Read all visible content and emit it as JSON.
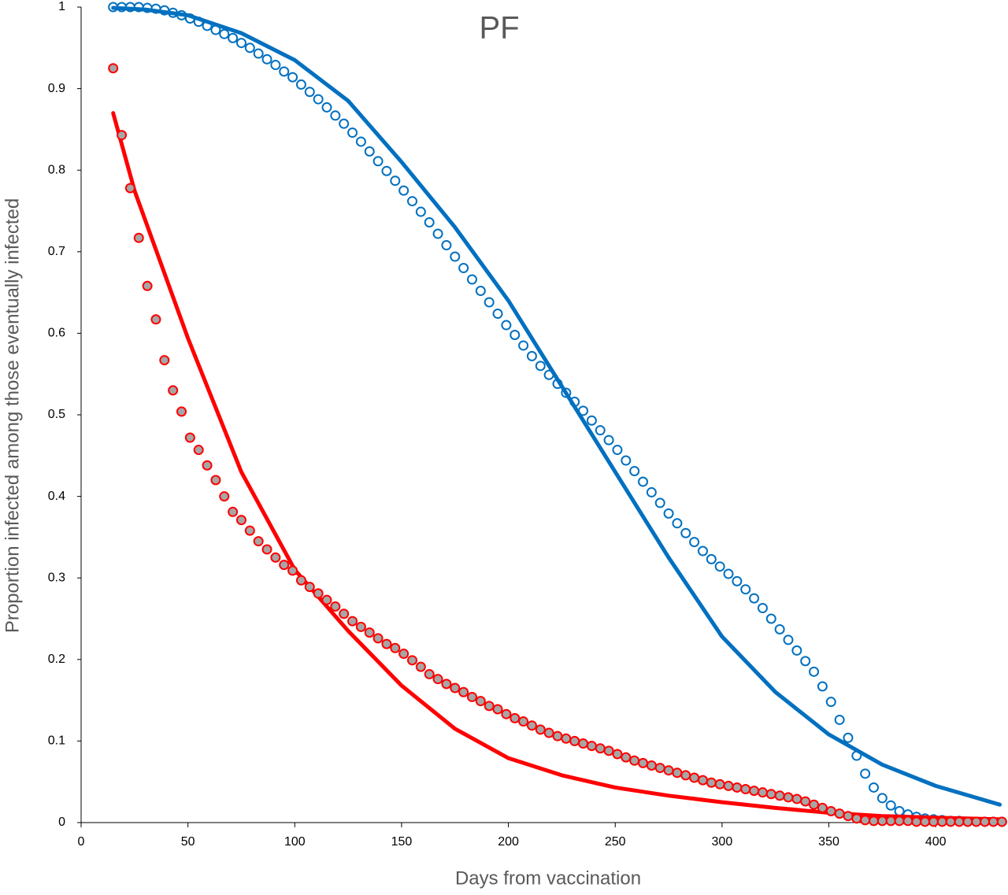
{
  "chart_data": {
    "type": "scatter",
    "title": "PF",
    "x_label": "Days from vaccination",
    "y_label": "Proportion infected among those eventually infected",
    "xlim": [
      0,
      432
    ],
    "xticks": [
      0,
      50,
      100,
      150,
      200,
      250,
      300,
      350,
      400
    ],
    "ylim": [
      0,
      1
    ],
    "yticks": [
      0,
      0.1,
      0.2,
      0.3,
      0.4,
      0.5,
      0.6,
      0.7,
      0.8,
      0.9,
      1
    ],
    "series": [
      {
        "style": "markers",
        "color": "#0070c0",
        "fill": "#ffffff",
        "x": [
          15,
          19,
          23,
          27,
          31,
          35,
          39,
          43,
          47,
          51,
          55,
          59,
          63,
          67,
          71,
          75,
          79,
          83,
          87,
          91,
          95,
          99,
          103,
          107,
          111,
          115,
          119,
          123,
          127,
          131,
          135,
          139,
          143,
          147,
          151,
          155,
          159,
          163,
          167,
          171,
          175,
          179,
          183,
          187,
          191,
          195,
          199,
          203,
          207,
          211,
          215,
          219,
          223,
          227,
          231,
          235,
          239,
          243,
          247,
          251,
          255,
          259,
          263,
          267,
          271,
          275,
          279,
          283,
          287,
          291,
          295,
          299,
          303,
          307,
          311,
          315,
          319,
          323,
          327,
          331,
          335,
          339,
          343,
          347,
          351,
          355,
          359,
          363,
          367,
          371,
          375,
          379,
          383,
          387,
          391,
          395,
          399,
          403,
          407,
          411,
          415,
          419,
          423,
          427,
          431
        ],
        "values": [
          1,
          1,
          1,
          1,
          0.999,
          0.998,
          0.996,
          0.993,
          0.99,
          0.986,
          0.982,
          0.977,
          0.972,
          0.967,
          0.962,
          0.956,
          0.95,
          0.943,
          0.936,
          0.929,
          0.921,
          0.914,
          0.905,
          0.896,
          0.887,
          0.877,
          0.867,
          0.857,
          0.846,
          0.835,
          0.823,
          0.811,
          0.799,
          0.787,
          0.775,
          0.762,
          0.749,
          0.736,
          0.722,
          0.708,
          0.694,
          0.68,
          0.666,
          0.652,
          0.638,
          0.624,
          0.61,
          0.598,
          0.585,
          0.572,
          0.56,
          0.549,
          0.538,
          0.527,
          0.516,
          0.505,
          0.493,
          0.481,
          0.469,
          0.457,
          0.444,
          0.431,
          0.418,
          0.405,
          0.392,
          0.379,
          0.367,
          0.355,
          0.344,
          0.333,
          0.323,
          0.314,
          0.305,
          0.296,
          0.286,
          0.275,
          0.263,
          0.25,
          0.237,
          0.224,
          0.211,
          0.198,
          0.185,
          0.167,
          0.148,
          0.126,
          0.104,
          0.082,
          0.06,
          0.043,
          0.03,
          0.021,
          0.014,
          0.01,
          0.007,
          0.005,
          0.004,
          0.003,
          0.002,
          0.002,
          0.001,
          0.001,
          0.001,
          0.001,
          0.001
        ]
      },
      {
        "style": "line",
        "color": "#0070c0",
        "x": [
          15,
          30,
          50,
          75,
          100,
          125,
          150,
          175,
          200,
          225,
          250,
          275,
          300,
          325,
          350,
          375,
          400,
          430
        ],
        "values": [
          0.999,
          0.997,
          0.99,
          0.968,
          0.935,
          0.885,
          0.81,
          0.73,
          0.64,
          0.535,
          0.43,
          0.325,
          0.228,
          0.16,
          0.108,
          0.071,
          0.045,
          0.022
        ]
      },
      {
        "style": "line",
        "color": "#ff0000",
        "x": [
          15,
          25,
          50,
          75,
          100,
          125,
          150,
          175,
          200,
          225,
          250,
          275,
          300,
          325,
          350,
          375,
          400,
          430
        ],
        "values": [
          0.87,
          0.775,
          0.594,
          0.43,
          0.31,
          0.235,
          0.168,
          0.115,
          0.079,
          0.058,
          0.043,
          0.033,
          0.025,
          0.018,
          0.012,
          0.008,
          0.006,
          0.004
        ]
      },
      {
        "style": "markers",
        "color": "#ff0000",
        "fill": "#a6a6a6",
        "x": [
          15,
          19,
          23,
          27,
          31,
          35,
          39,
          43,
          47,
          51,
          55,
          59,
          63,
          67,
          71,
          75,
          79,
          83,
          87,
          91,
          95,
          99,
          103,
          107,
          111,
          115,
          119,
          123,
          127,
          131,
          135,
          139,
          143,
          147,
          151,
          155,
          159,
          163,
          167,
          171,
          175,
          179,
          183,
          187,
          191,
          195,
          199,
          203,
          207,
          211,
          215,
          219,
          223,
          227,
          231,
          235,
          239,
          243,
          247,
          251,
          255,
          259,
          263,
          267,
          271,
          275,
          279,
          283,
          287,
          291,
          295,
          299,
          303,
          307,
          311,
          315,
          319,
          323,
          327,
          331,
          335,
          339,
          343,
          347,
          351,
          355,
          359,
          363,
          367,
          371,
          375,
          379,
          383,
          387,
          391,
          395,
          399,
          403,
          407,
          411,
          415,
          419,
          423,
          427,
          431
        ],
        "values": [
          0.925,
          0.843,
          0.778,
          0.717,
          0.658,
          0.617,
          0.567,
          0.53,
          0.504,
          0.472,
          0.457,
          0.438,
          0.42,
          0.4,
          0.381,
          0.371,
          0.358,
          0.345,
          0.335,
          0.325,
          0.316,
          0.309,
          0.297,
          0.289,
          0.281,
          0.273,
          0.265,
          0.256,
          0.247,
          0.24,
          0.233,
          0.226,
          0.219,
          0.214,
          0.207,
          0.199,
          0.191,
          0.182,
          0.176,
          0.17,
          0.165,
          0.16,
          0.154,
          0.149,
          0.143,
          0.139,
          0.133,
          0.128,
          0.124,
          0.119,
          0.114,
          0.11,
          0.106,
          0.103,
          0.1,
          0.097,
          0.094,
          0.091,
          0.088,
          0.084,
          0.08,
          0.076,
          0.073,
          0.07,
          0.067,
          0.064,
          0.061,
          0.058,
          0.055,
          0.052,
          0.049,
          0.047,
          0.045,
          0.043,
          0.041,
          0.039,
          0.037,
          0.035,
          0.033,
          0.031,
          0.029,
          0.026,
          0.022,
          0.018,
          0.014,
          0.011,
          0.008,
          0.005,
          0.003,
          0.002,
          0.002,
          0.002,
          0.002,
          0.002,
          0.001,
          0.001,
          0.001,
          0.001,
          0.001,
          0.001,
          0.001,
          0.001,
          0.001,
          0.001,
          0.001
        ]
      }
    ]
  }
}
